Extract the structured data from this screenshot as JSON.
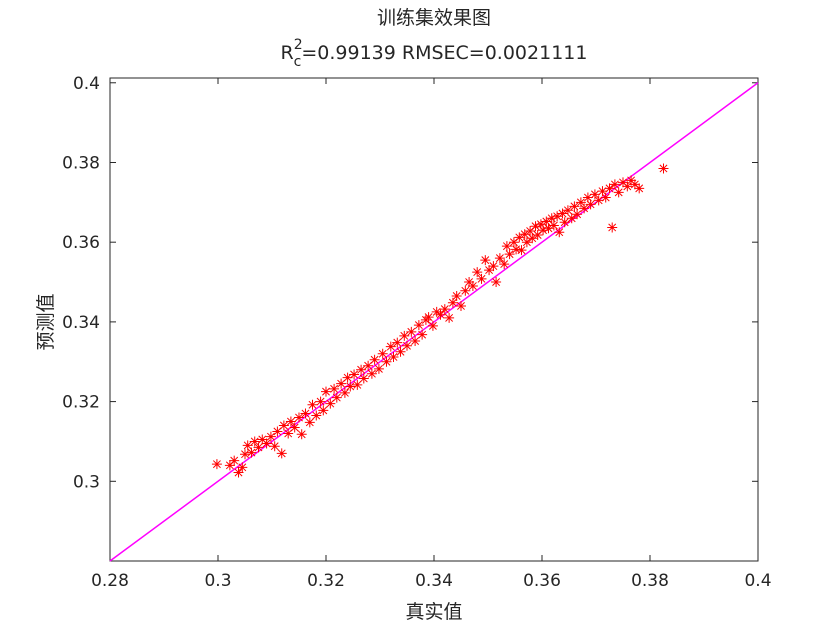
{
  "chart_data": {
    "type": "scatter",
    "title": "训练集效果图",
    "subtitle": {
      "base": "R",
      "sup": "2",
      "sub": "c",
      "rest": "=0.99139  RMSEC=0.0021111"
    },
    "x_label": "真实值",
    "y_label": "预测值",
    "xlim": [
      0.28,
      0.4
    ],
    "ylim": [
      0.28,
      0.4012
    ],
    "xticks": [
      0.28,
      0.3,
      0.32,
      0.34,
      0.36,
      0.38,
      0.4
    ],
    "yticks": [
      0.3,
      0.32,
      0.34,
      0.36,
      0.38,
      0.4
    ],
    "grid": false,
    "reference_line": {
      "x": [
        0.28,
        0.4
      ],
      "y": [
        0.28,
        0.4
      ],
      "color": "#ff00ff"
    },
    "series": [
      {
        "color": "#ff0000",
        "x": [
          0.2998,
          0.3022,
          0.303,
          0.3038,
          0.3045,
          0.305,
          0.3055,
          0.3062,
          0.3068,
          0.3075,
          0.3082,
          0.309,
          0.3098,
          0.3105,
          0.311,
          0.3118,
          0.3122,
          0.313,
          0.3135,
          0.3142,
          0.315,
          0.3155,
          0.3162,
          0.317,
          0.3175,
          0.3182,
          0.319,
          0.3195,
          0.32,
          0.3208,
          0.3215,
          0.322,
          0.3228,
          0.3235,
          0.324,
          0.3245,
          0.3252,
          0.3258,
          0.3265,
          0.327,
          0.3278,
          0.3285,
          0.329,
          0.3298,
          0.3305,
          0.3312,
          0.332,
          0.3325,
          0.3332,
          0.3338,
          0.3345,
          0.335,
          0.3358,
          0.3365,
          0.3372,
          0.3378,
          0.3385,
          0.339,
          0.3398,
          0.3405,
          0.3412,
          0.342,
          0.3428,
          0.3435,
          0.3442,
          0.345,
          0.3458,
          0.3465,
          0.3472,
          0.348,
          0.3488,
          0.3495,
          0.3502,
          0.351,
          0.3515,
          0.3522,
          0.353,
          0.3535,
          0.354,
          0.3548,
          0.3552,
          0.3558,
          0.3562,
          0.3568,
          0.3572,
          0.3578,
          0.3582,
          0.3588,
          0.3592,
          0.3598,
          0.3602,
          0.3608,
          0.3612,
          0.3618,
          0.3622,
          0.3628,
          0.3632,
          0.3638,
          0.3642,
          0.3648,
          0.3655,
          0.366,
          0.3665,
          0.3672,
          0.3678,
          0.3685,
          0.369,
          0.3698,
          0.3705,
          0.3712,
          0.3718,
          0.3725,
          0.373,
          0.3735,
          0.3742,
          0.375,
          0.3758,
          0.3765,
          0.3772,
          0.378,
          0.3825
        ],
        "values": [
          0.3043,
          0.304,
          0.3052,
          0.3022,
          0.3035,
          0.3068,
          0.309,
          0.3072,
          0.31,
          0.3085,
          0.3105,
          0.3095,
          0.3112,
          0.3088,
          0.3125,
          0.307,
          0.314,
          0.312,
          0.315,
          0.3135,
          0.316,
          0.3118,
          0.317,
          0.3148,
          0.3192,
          0.3165,
          0.32,
          0.3178,
          0.3225,
          0.3195,
          0.3232,
          0.321,
          0.3245,
          0.3222,
          0.326,
          0.3238,
          0.3268,
          0.3242,
          0.328,
          0.3258,
          0.329,
          0.327,
          0.3305,
          0.3282,
          0.332,
          0.33,
          0.3338,
          0.3312,
          0.3348,
          0.3325,
          0.3365,
          0.334,
          0.3375,
          0.3352,
          0.3392,
          0.3368,
          0.3405,
          0.3412,
          0.339,
          0.3425,
          0.3418,
          0.3432,
          0.341,
          0.3448,
          0.3465,
          0.344,
          0.3478,
          0.35,
          0.349,
          0.3525,
          0.3508,
          0.3555,
          0.353,
          0.354,
          0.35,
          0.356,
          0.3545,
          0.359,
          0.357,
          0.36,
          0.3582,
          0.3612,
          0.358,
          0.362,
          0.36,
          0.3628,
          0.361,
          0.364,
          0.3618,
          0.3645,
          0.363,
          0.3652,
          0.3635,
          0.366,
          0.3642,
          0.3665,
          0.3625,
          0.3672,
          0.365,
          0.368,
          0.366,
          0.369,
          0.367,
          0.37,
          0.3685,
          0.3712,
          0.3695,
          0.372,
          0.3705,
          0.3728,
          0.3712,
          0.3735,
          0.3637,
          0.3745,
          0.3725,
          0.375,
          0.374,
          0.3755,
          0.3745,
          0.3735,
          0.3785
        ]
      }
    ]
  }
}
